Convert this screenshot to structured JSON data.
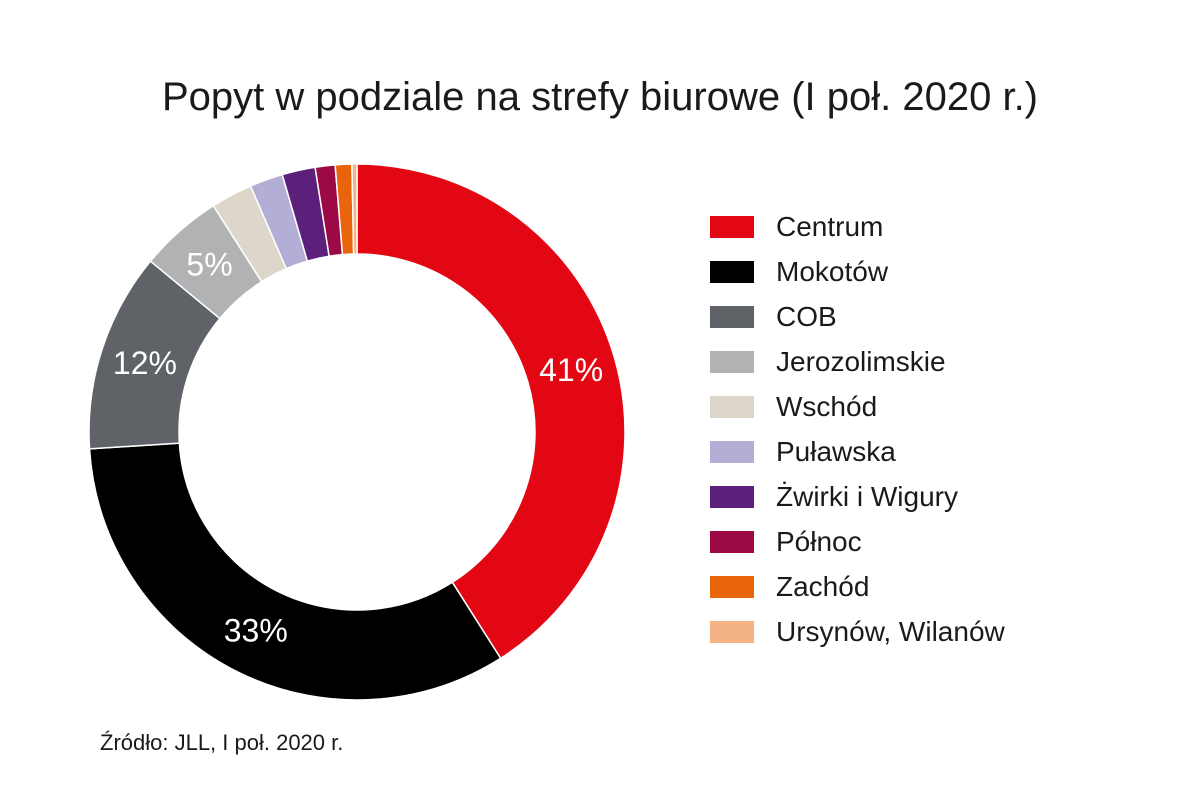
{
  "chart_data": {
    "type": "pie",
    "title": "Popyt w podziale na strefy biurowe (I poł. 2020 r.)",
    "donut": true,
    "legend_position": "right",
    "categories": [
      "Centrum",
      "Mokotów",
      "COB",
      "Jerozolimskie",
      "Wschód",
      "Puławska",
      "Żwirki i Wigury",
      "Północ",
      "Zachód",
      "Ursynów, Wilanów"
    ],
    "values": [
      41,
      33,
      12,
      5,
      2.5,
      2,
      2,
      1.2,
      1,
      0.3
    ],
    "data_labels": [
      "41%",
      "33%",
      "12%",
      "5%",
      "",
      "",
      "",
      "",
      "",
      ""
    ],
    "colors": [
      "#e30613",
      "#000000",
      "#5f6368",
      "#b1b2b4",
      "#ddd7cb",
      "#b3aed6",
      "#5c1f7a",
      "#9b0a45",
      "#e9650c",
      "#f4b183"
    ]
  },
  "source": "Źródło: JLL, I poł. 2020 r."
}
